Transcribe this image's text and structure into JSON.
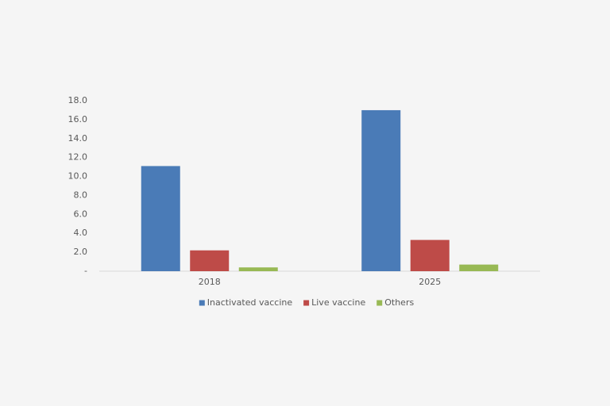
{
  "chart_data": {
    "type": "bar",
    "categories": [
      "2018",
      "2025"
    ],
    "series": [
      {
        "name": "Inactivated vaccine",
        "color": "#4a7bb7",
        "values": [
          11.1,
          17.0
        ]
      },
      {
        "name": "Live vaccine",
        "color": "#be4b48",
        "values": [
          2.2,
          3.3
        ]
      },
      {
        "name": "Others",
        "color": "#98b954",
        "values": [
          0.4,
          0.7
        ]
      }
    ],
    "ylim": [
      0,
      18
    ],
    "yticks": [
      {
        "value": 0,
        "label": "-"
      },
      {
        "value": 2,
        "label": "2.0"
      },
      {
        "value": 4,
        "label": "4.0"
      },
      {
        "value": 6,
        "label": "6.0"
      },
      {
        "value": 8,
        "label": "8.0"
      },
      {
        "value": 10,
        "label": "10.0"
      },
      {
        "value": 12,
        "label": "12.0"
      },
      {
        "value": 14,
        "label": "14.0"
      },
      {
        "value": 16,
        "label": "16.0"
      },
      {
        "value": 18,
        "label": "18.0"
      }
    ],
    "grid": false,
    "legend": "bottom"
  }
}
